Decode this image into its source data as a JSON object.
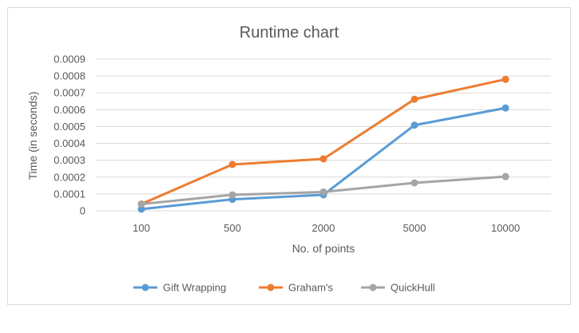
{
  "chart_data": {
    "type": "line",
    "title": "Runtime chart",
    "xlabel": "No. of points",
    "ylabel": "Time (in seconds)",
    "categories": [
      "100",
      "500",
      "2000",
      "5000",
      "10000"
    ],
    "ylim": [
      0,
      0.0009
    ],
    "yticks": [
      "0",
      "0.0001",
      "0.0002",
      "0.0003",
      "0.0004",
      "0.0005",
      "0.0006",
      "0.0007",
      "0.0008",
      "0.0009"
    ],
    "grid": true,
    "legend_position": "bottom",
    "series": [
      {
        "name": "Gift Wrapping",
        "color": "#5b9bd5",
        "values": [
          1e-05,
          6.8e-05,
          9.5e-05,
          0.000508,
          0.00061
        ]
      },
      {
        "name": "Graham's",
        "color": "#ed7d31",
        "values": [
          4e-05,
          0.000275,
          0.000308,
          0.000662,
          0.00078
        ]
      },
      {
        "name": "QuickHull",
        "color": "#a5a5a5",
        "values": [
          4e-05,
          9.5e-05,
          0.000112,
          0.000166,
          0.000203
        ]
      }
    ]
  }
}
